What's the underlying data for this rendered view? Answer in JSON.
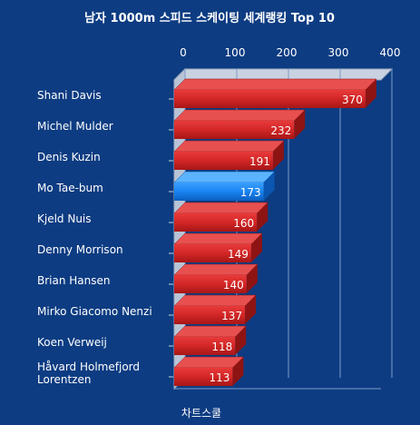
{
  "chart_data": {
    "type": "bar",
    "orientation": "horizontal",
    "title": "남자 1000m 스피드 스케이팅 세계랭킹 Top 10",
    "categories": [
      "Shani Davis",
      "Michel Mulder",
      "Denis Kuzin",
      "Mo Tae-bum",
      "Kjeld Nuis",
      "Denny Morrison",
      "Brian Hansen",
      "Mirko Giacomo Nenzi",
      "Koen Verweij",
      "Håvard Holmefjord Lorentzen"
    ],
    "values": [
      370,
      232,
      191,
      173,
      160,
      149,
      140,
      137,
      118,
      113
    ],
    "highlight_index": 3,
    "xlim": [
      0,
      400
    ],
    "xticks": [
      0,
      100,
      200,
      300,
      400
    ],
    "axis_position": "top",
    "grid": true,
    "legend": "none",
    "colors": {
      "background": "#0d3c82",
      "bar": "#d42a2a",
      "bar_highlight": "#1a84f2",
      "grid": "#7f9cc8",
      "text": "#ffffff"
    }
  },
  "watermark": "차트스쿨"
}
